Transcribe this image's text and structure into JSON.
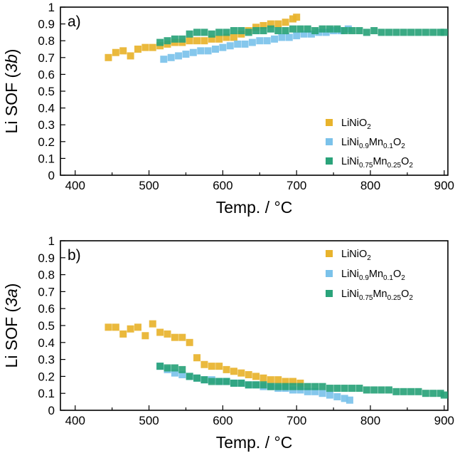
{
  "chart_data": [
    {
      "type": "scatter",
      "panel_label": "a)",
      "ylabel_prefix": "Li SOF (",
      "ylabel_site": "3b",
      "ylabel_suffix": ")",
      "xlabel": "Temp. / °C",
      "xlim": [
        380,
        905
      ],
      "ylim": [
        0,
        1
      ],
      "xticks": [
        "400",
        "500",
        "600",
        "700",
        "800",
        "900"
      ],
      "yticks": [
        "0",
        "0.1",
        "0.2",
        "0.3",
        "0.4",
        "0.5",
        "0.6",
        "0.7",
        "0.8",
        "0.9",
        "1"
      ],
      "legend_position": "bottom-right",
      "series": [
        {
          "name": "LiNiO2",
          "legend": [
            [
              "LiNiO",
              ""
            ],
            [
              "2",
              "sub"
            ]
          ],
          "color": "#e8b32c",
          "x": [
            445,
            455,
            465,
            475,
            485,
            495,
            505,
            515,
            525,
            535,
            545,
            555,
            565,
            575,
            585,
            595,
            605,
            615,
            625,
            635,
            645,
            655,
            665,
            675,
            685,
            695,
            700
          ],
          "y": [
            0.7,
            0.73,
            0.74,
            0.71,
            0.75,
            0.76,
            0.76,
            0.77,
            0.78,
            0.79,
            0.79,
            0.8,
            0.8,
            0.8,
            0.81,
            0.81,
            0.82,
            0.82,
            0.84,
            0.86,
            0.88,
            0.89,
            0.9,
            0.9,
            0.91,
            0.93,
            0.94
          ]
        },
        {
          "name": "LiNi0.9Mn0.1O2",
          "legend": [
            [
              "LiNi",
              ""
            ],
            [
              "0.9",
              "sub"
            ],
            [
              "Mn",
              ""
            ],
            [
              "0.1",
              "sub"
            ],
            [
              "O",
              ""
            ],
            [
              "2",
              "sub"
            ]
          ],
          "color": "#7bc2ea",
          "x": [
            520,
            530,
            540,
            550,
            560,
            570,
            580,
            590,
            600,
            610,
            620,
            630,
            640,
            650,
            660,
            670,
            680,
            690,
            700,
            710,
            720,
            730,
            740,
            750,
            760,
            770
          ],
          "y": [
            0.69,
            0.7,
            0.71,
            0.72,
            0.73,
            0.74,
            0.74,
            0.75,
            0.76,
            0.77,
            0.78,
            0.78,
            0.79,
            0.8,
            0.8,
            0.81,
            0.82,
            0.82,
            0.83,
            0.84,
            0.84,
            0.85,
            0.85,
            0.86,
            0.86,
            0.87
          ]
        },
        {
          "name": "LiNi0.75Mn0.25O2",
          "legend": [
            [
              "LiNi",
              ""
            ],
            [
              "0.75",
              "sub"
            ],
            [
              "Mn",
              ""
            ],
            [
              "0.25",
              "sub"
            ],
            [
              "O",
              ""
            ],
            [
              "2",
              "sub"
            ]
          ],
          "color": "#2aa37a",
          "x": [
            515,
            525,
            535,
            545,
            555,
            565,
            575,
            585,
            595,
            605,
            615,
            625,
            635,
            645,
            655,
            665,
            675,
            685,
            695,
            705,
            715,
            725,
            735,
            745,
            755,
            765,
            775,
            785,
            795,
            805,
            815,
            825,
            835,
            845,
            855,
            865,
            875,
            885,
            895,
            900
          ],
          "y": [
            0.79,
            0.8,
            0.81,
            0.81,
            0.84,
            0.85,
            0.85,
            0.84,
            0.85,
            0.85,
            0.86,
            0.86,
            0.85,
            0.86,
            0.86,
            0.87,
            0.86,
            0.86,
            0.87,
            0.87,
            0.87,
            0.86,
            0.87,
            0.87,
            0.87,
            0.86,
            0.86,
            0.86,
            0.85,
            0.86,
            0.85,
            0.85,
            0.85,
            0.85,
            0.85,
            0.85,
            0.85,
            0.85,
            0.85,
            0.85
          ]
        }
      ]
    },
    {
      "type": "scatter",
      "panel_label": "b)",
      "ylabel_prefix": "Li SOF (",
      "ylabel_site": "3a",
      "ylabel_suffix": ")",
      "xlabel": "Temp. / °C",
      "xlim": [
        380,
        905
      ],
      "ylim": [
        0,
        1
      ],
      "xticks": [
        "400",
        "500",
        "600",
        "700",
        "800",
        "900"
      ],
      "yticks": [
        "0",
        "0.1",
        "0.2",
        "0.3",
        "0.4",
        "0.5",
        "0.6",
        "0.7",
        "0.8",
        "0.9",
        "1"
      ],
      "legend_position": "top-right",
      "series": [
        {
          "name": "LiNiO2",
          "legend": [
            [
              "LiNiO",
              ""
            ],
            [
              "2",
              "sub"
            ]
          ],
          "color": "#e8b32c",
          "x": [
            445,
            455,
            465,
            475,
            485,
            495,
            505,
            515,
            525,
            535,
            545,
            555,
            565,
            575,
            585,
            595,
            605,
            615,
            625,
            635,
            645,
            655,
            665,
            675,
            685,
            695,
            705
          ],
          "y": [
            0.49,
            0.49,
            0.45,
            0.48,
            0.49,
            0.44,
            0.51,
            0.46,
            0.45,
            0.43,
            0.43,
            0.4,
            0.31,
            0.27,
            0.26,
            0.26,
            0.24,
            0.23,
            0.22,
            0.21,
            0.2,
            0.19,
            0.18,
            0.18,
            0.17,
            0.17,
            0.16
          ]
        },
        {
          "name": "LiNi0.9Mn0.1O2",
          "legend": [
            [
              "LiNi",
              ""
            ],
            [
              "0.9",
              "sub"
            ],
            [
              "Mn",
              ""
            ],
            [
              "0.1",
              "sub"
            ],
            [
              "O",
              ""
            ],
            [
              "2",
              "sub"
            ]
          ],
          "color": "#7bc2ea",
          "x": [
            515,
            525,
            535,
            545,
            555,
            565,
            575,
            585,
            595,
            605,
            615,
            625,
            635,
            645,
            655,
            665,
            675,
            685,
            695,
            705,
            715,
            725,
            735,
            745,
            755,
            765,
            772
          ],
          "y": [
            0.26,
            0.24,
            0.22,
            0.21,
            0.2,
            0.19,
            0.18,
            0.18,
            0.17,
            0.17,
            0.16,
            0.16,
            0.15,
            0.15,
            0.14,
            0.14,
            0.13,
            0.13,
            0.12,
            0.12,
            0.11,
            0.11,
            0.1,
            0.09,
            0.08,
            0.07,
            0.06
          ]
        },
        {
          "name": "LiNi0.75Mn0.25O2",
          "legend": [
            [
              "LiNi",
              ""
            ],
            [
              "0.75",
              "sub"
            ],
            [
              "Mn",
              ""
            ],
            [
              "0.25",
              "sub"
            ],
            [
              "O",
              ""
            ],
            [
              "2",
              "sub"
            ]
          ],
          "color": "#2aa37a",
          "x": [
            515,
            525,
            535,
            545,
            555,
            565,
            575,
            585,
            595,
            605,
            615,
            625,
            635,
            645,
            655,
            665,
            675,
            685,
            695,
            705,
            715,
            725,
            735,
            745,
            755,
            765,
            775,
            785,
            795,
            805,
            815,
            825,
            835,
            845,
            855,
            865,
            875,
            885,
            895,
            900
          ],
          "y": [
            0.26,
            0.25,
            0.25,
            0.24,
            0.2,
            0.19,
            0.18,
            0.17,
            0.17,
            0.17,
            0.16,
            0.16,
            0.15,
            0.15,
            0.15,
            0.14,
            0.14,
            0.14,
            0.14,
            0.14,
            0.14,
            0.14,
            0.14,
            0.13,
            0.13,
            0.13,
            0.13,
            0.13,
            0.12,
            0.12,
            0.12,
            0.12,
            0.11,
            0.11,
            0.11,
            0.11,
            0.1,
            0.1,
            0.1,
            0.09
          ]
        }
      ]
    }
  ]
}
